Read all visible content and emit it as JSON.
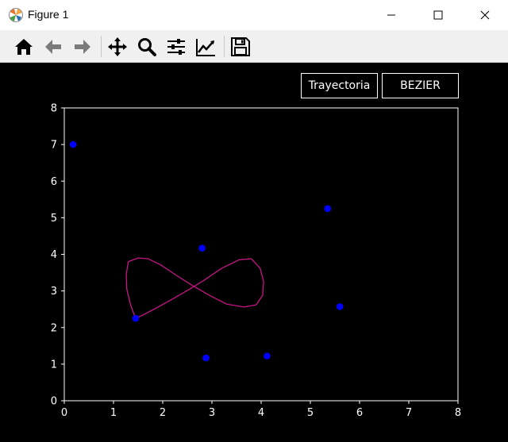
{
  "window": {
    "title": "Figure 1",
    "controls": [
      "minimize-icon",
      "maximize-icon",
      "close-icon"
    ]
  },
  "toolbar": {
    "tools": [
      "home-icon",
      "back-arrow-icon",
      "forward-arrow-icon",
      "pan-icon",
      "zoom-icon",
      "subplots-config-icon",
      "edit-axis-icon",
      "save-icon"
    ]
  },
  "buttons": {
    "trajectory_label": "Trayectoria",
    "bezier_label": "BEZIER"
  },
  "colors": {
    "background": "#000000",
    "axes": "#ffffff",
    "points": "#0000ff",
    "curve": "#c71585"
  },
  "chart_data": {
    "type": "scatter",
    "title": "",
    "xlabel": "",
    "ylabel": "",
    "xlim": [
      0,
      8
    ],
    "ylim": [
      0,
      8
    ],
    "xticks": [
      "0",
      "1",
      "2",
      "3",
      "4",
      "5",
      "6",
      "7",
      "8"
    ],
    "yticks": [
      "0",
      "1",
      "2",
      "3",
      "4",
      "5",
      "6",
      "7",
      "8"
    ],
    "grid": false,
    "series": [
      {
        "type": "scatter",
        "color": "#0000ff",
        "points": [
          [
            0.18,
            7.0
          ],
          [
            2.8,
            4.17
          ],
          [
            5.35,
            5.25
          ],
          [
            5.6,
            2.57
          ],
          [
            1.45,
            2.25
          ],
          [
            2.88,
            1.17
          ],
          [
            4.12,
            1.22
          ]
        ]
      },
      {
        "type": "line",
        "color": "#c71585",
        "points": [
          [
            1.45,
            2.25
          ],
          [
            1.35,
            2.6
          ],
          [
            1.27,
            3.05
          ],
          [
            1.26,
            3.45
          ],
          [
            1.3,
            3.8
          ],
          [
            1.5,
            3.9
          ],
          [
            1.7,
            3.88
          ],
          [
            1.95,
            3.72
          ],
          [
            2.25,
            3.45
          ],
          [
            2.6,
            3.15
          ],
          [
            2.95,
            2.88
          ],
          [
            3.3,
            2.64
          ],
          [
            3.65,
            2.56
          ],
          [
            3.9,
            2.62
          ],
          [
            4.03,
            2.88
          ],
          [
            4.05,
            3.25
          ],
          [
            3.98,
            3.62
          ],
          [
            3.8,
            3.88
          ],
          [
            3.55,
            3.85
          ],
          [
            3.2,
            3.62
          ],
          [
            2.85,
            3.3
          ],
          [
            2.55,
            3.05
          ],
          [
            2.2,
            2.78
          ],
          [
            1.85,
            2.52
          ],
          [
            1.58,
            2.33
          ],
          [
            1.45,
            2.25
          ]
        ]
      }
    ]
  }
}
